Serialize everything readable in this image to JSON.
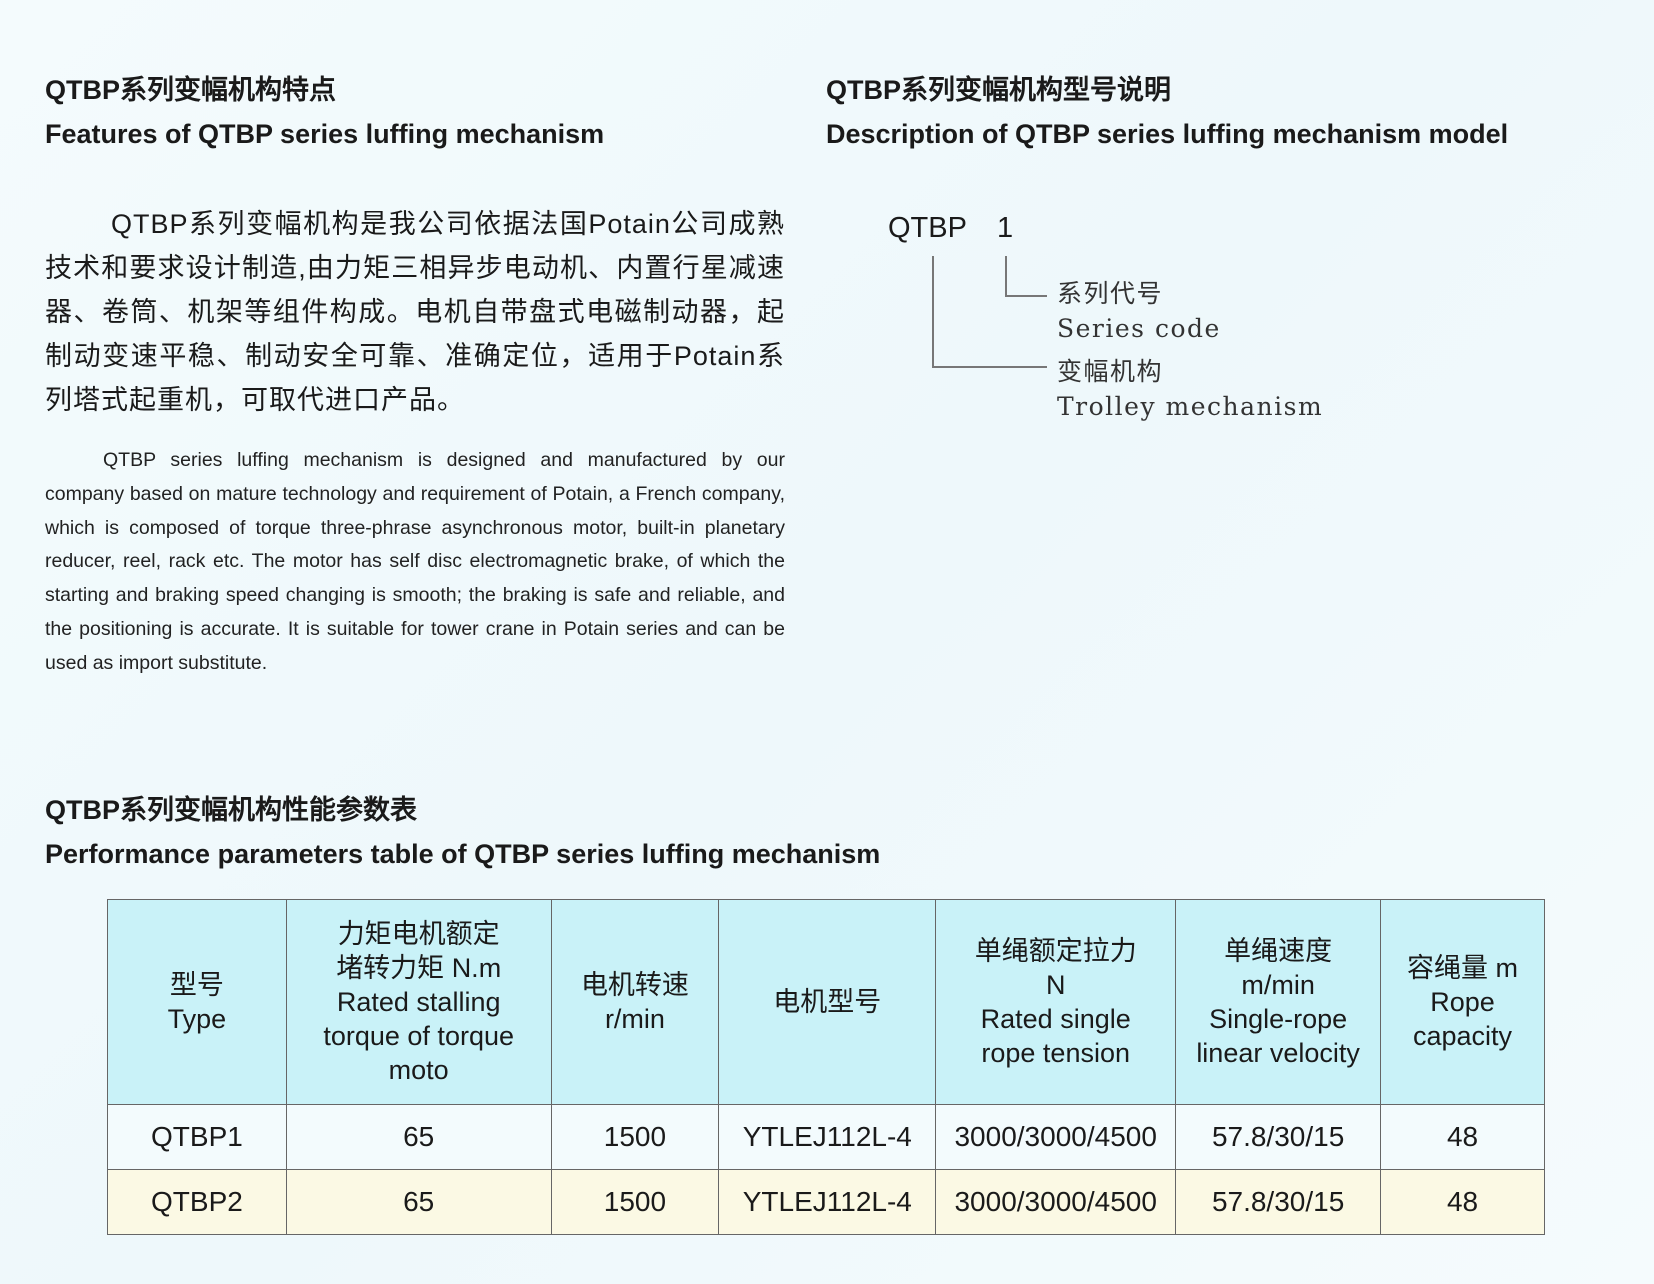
{
  "features": {
    "title_cn": "QTBP系列变幅机构特点",
    "title_en": "Features of QTBP series luffing mechanism",
    "body_cn": "QTBP系列变幅机构是我公司依据法国Potain公司成熟技术和要求设计制造,由力矩三相异步电动机、内置行星减速器、卷筒、机架等组件构成。电机自带盘式电磁制动器，起制动变速平稳、制动安全可靠、准确定位，适用于Potain系列塔式起重机，可取代进口产品。",
    "body_en": "QTBP series luffing mechanism is designed and manufactured by our company based on mature technology and requirement of Potain, a French company, which is composed of torque three-phrase asynchronous motor, built-in planetary reducer, reel, rack etc. The motor has self disc electromagnetic brake, of which the starting and braking speed changing is smooth; the braking is safe and reliable, and the positioning is accurate. It is suitable for tower crane in Potain series and can be used as import substitute."
  },
  "model": {
    "title_cn": "QTBP系列变幅机构型号说明",
    "title_en": "Description of QTBP series luffing mechanism model",
    "prefix": "QTBP",
    "code": "1",
    "code_label_cn": "系列代号",
    "code_label_en": "Series code",
    "prefix_label_cn": "变幅机构",
    "prefix_label_en": "Trolley mechanism"
  },
  "table": {
    "title_cn": "QTBP系列变幅机构性能参数表",
    "title_en": "Performance parameters table of QTBP series luffing mechanism",
    "header_bg": "#c9f2f8",
    "headers": [
      [
        "型号",
        "Type"
      ],
      [
        "力矩电机额定",
        "堵转力矩 N.m",
        "Rated stalling",
        "torque of torque",
        "moto"
      ],
      [
        "电机转速",
        "r/min"
      ],
      [
        "电机型号"
      ],
      [
        "单绳额定拉力",
        "N",
        "Rated single",
        "rope tension"
      ],
      [
        "单绳速度",
        "m/min",
        "Single-rope",
        "linear velocity"
      ],
      [
        "容绳量 m",
        "Rope",
        "capacity"
      ]
    ],
    "rows": [
      [
        "QTBP1",
        "65",
        "1500",
        "YTLEJ112L-4",
        "3000/3000/4500",
        "57.8/30/15",
        "48"
      ],
      [
        "QTBP2",
        "65",
        "1500",
        "YTLEJ112L-4",
        "3000/3000/4500",
        "57.8/30/15",
        "48"
      ]
    ]
  }
}
